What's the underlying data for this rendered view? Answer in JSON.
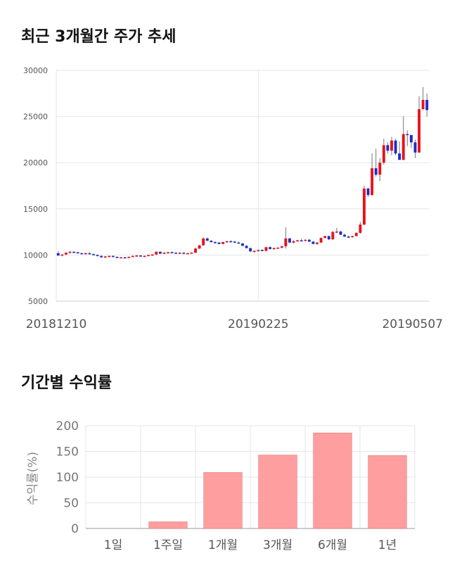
{
  "titles": {
    "price_chart": "최근 3개월간 주가 추세",
    "returns_chart": "기간별 수익률"
  },
  "colors": {
    "up": "#e8121d",
    "down": "#1d2dc8",
    "bar_fill": "#ff9e9e",
    "bar_stroke": "#e07a7a",
    "grid": "#e6e6e6"
  },
  "chart_data": [
    {
      "type": "candlestick",
      "title": "최근 3개월간 주가 추세",
      "y_ticks": [
        30000,
        25000,
        20000,
        15000,
        10000,
        5000
      ],
      "ylim": [
        5000,
        30000
      ],
      "x_labels": [
        {
          "label": "20181210",
          "index": 0
        },
        {
          "label": "20190225",
          "index": 51
        },
        {
          "label": "20190507",
          "index": 102
        }
      ],
      "candles": [
        [
          10200,
          10400,
          9900,
          9950
        ],
        [
          9950,
          10100,
          9850,
          10050
        ],
        [
          10050,
          10300,
          10000,
          10250
        ],
        [
          10250,
          10450,
          10150,
          10350
        ],
        [
          10350,
          10400,
          10200,
          10300
        ],
        [
          10300,
          10350,
          10150,
          10200
        ],
        [
          10200,
          10250,
          10100,
          10150
        ],
        [
          10150,
          10250,
          10050,
          10200
        ],
        [
          10200,
          10300,
          10050,
          10100
        ],
        [
          10100,
          10150,
          9950,
          10000
        ],
        [
          10000,
          10050,
          9850,
          9900
        ],
        [
          9900,
          9950,
          9700,
          9750
        ],
        [
          9750,
          9900,
          9650,
          9850
        ],
        [
          9850,
          9950,
          9750,
          9900
        ],
        [
          9900,
          9950,
          9750,
          9800
        ],
        [
          9800,
          9850,
          9650,
          9700
        ],
        [
          9700,
          9800,
          9650,
          9750
        ],
        [
          9750,
          9800,
          9650,
          9700
        ],
        [
          9700,
          9850,
          9650,
          9800
        ],
        [
          9800,
          9950,
          9750,
          9900
        ],
        [
          9900,
          10000,
          9800,
          9950
        ],
        [
          9950,
          10000,
          9800,
          9850
        ],
        [
          9850,
          9950,
          9800,
          9900
        ],
        [
          9900,
          10050,
          9850,
          10000
        ],
        [
          10000,
          10100,
          9900,
          10050
        ],
        [
          10050,
          10400,
          10000,
          10350
        ],
        [
          10350,
          10400,
          10100,
          10150
        ],
        [
          10150,
          10300,
          10100,
          10250
        ],
        [
          10250,
          10350,
          10150,
          10300
        ],
        [
          10300,
          10400,
          10200,
          10250
        ],
        [
          10250,
          10300,
          10150,
          10200
        ],
        [
          10200,
          10300,
          10100,
          10250
        ],
        [
          10250,
          10300,
          10100,
          10150
        ],
        [
          10150,
          10250,
          10100,
          10200
        ],
        [
          10200,
          10300,
          10150,
          10250
        ],
        [
          10250,
          10800,
          10200,
          10700
        ],
        [
          10700,
          11100,
          10650,
          11050
        ],
        [
          11050,
          11900,
          11000,
          11800
        ],
        [
          11800,
          11900,
          11500,
          11550
        ],
        [
          11550,
          11600,
          11350,
          11400
        ],
        [
          11400,
          11500,
          11250,
          11350
        ],
        [
          11350,
          11400,
          11150,
          11200
        ],
        [
          11200,
          11450,
          11150,
          11400
        ],
        [
          11400,
          11550,
          11300,
          11500
        ],
        [
          11500,
          11600,
          11350,
          11450
        ],
        [
          11450,
          11550,
          11300,
          11350
        ],
        [
          11350,
          11450,
          11200,
          11250
        ],
        [
          11250,
          11300,
          10950,
          11000
        ],
        [
          11000,
          11050,
          10700,
          10750
        ],
        [
          10750,
          10800,
          10300,
          10400
        ],
        [
          10400,
          10500,
          10250,
          10450
        ],
        [
          10450,
          10600,
          10350,
          10550
        ],
        [
          10550,
          10650,
          10400,
          10450
        ],
        [
          10450,
          10900,
          10400,
          10850
        ],
        [
          10850,
          10950,
          10600,
          10650
        ],
        [
          10650,
          10800,
          10550,
          10750
        ],
        [
          10750,
          10850,
          10650,
          10800
        ],
        [
          10800,
          11000,
          10700,
          10950
        ],
        [
          10950,
          13000,
          10700,
          11800
        ],
        [
          11800,
          11850,
          11300,
          11350
        ],
        [
          11350,
          11600,
          11250,
          11500
        ],
        [
          11500,
          11650,
          11400,
          11600
        ],
        [
          11600,
          11750,
          11450,
          11550
        ],
        [
          11550,
          11700,
          11450,
          11650
        ],
        [
          11650,
          11750,
          11400,
          11450
        ],
        [
          11450,
          11500,
          11150,
          11200
        ],
        [
          11200,
          11400,
          11100,
          11350
        ],
        [
          11350,
          11900,
          11300,
          11850
        ],
        [
          11850,
          12100,
          11800,
          12050
        ],
        [
          12050,
          12100,
          11600,
          11700
        ],
        [
          11700,
          12600,
          11650,
          12500
        ],
        [
          12500,
          12950,
          12350,
          12550
        ],
        [
          12550,
          12600,
          12150,
          12200
        ],
        [
          12200,
          12300,
          11950,
          12000
        ],
        [
          12000,
          12100,
          11850,
          11950
        ],
        [
          11950,
          12100,
          11850,
          12050
        ],
        [
          12050,
          12450,
          12000,
          12400
        ],
        [
          12400,
          13600,
          12300,
          13300
        ],
        [
          13300,
          17500,
          13200,
          17200
        ],
        [
          17200,
          17300,
          16300,
          16500
        ],
        [
          16500,
          21000,
          16400,
          19400
        ],
        [
          19400,
          21500,
          18500,
          18700
        ],
        [
          18700,
          20500,
          18000,
          20000
        ],
        [
          20000,
          22600,
          19800,
          21900
        ],
        [
          21900,
          22200,
          21000,
          21300
        ],
        [
          21300,
          22800,
          20800,
          22400
        ],
        [
          22400,
          22600,
          20800,
          21000
        ],
        [
          21000,
          22300,
          20400,
          20300
        ],
        [
          20300,
          25000,
          20300,
          23100
        ],
        [
          23100,
          23500,
          21800,
          23000
        ],
        [
          23000,
          22800,
          21600,
          22200
        ],
        [
          22200,
          22500,
          20500,
          21100
        ],
        [
          21100,
          27200,
          21100,
          25800
        ],
        [
          25800,
          28200,
          25700,
          26800
        ],
        [
          26800,
          27500,
          25000,
          25700
        ]
      ]
    },
    {
      "type": "bar",
      "title": "기간별 수익률",
      "ylabel": "수익률(%)",
      "categories": [
        "1일",
        "1주일",
        "1개월",
        "3개월",
        "6개월",
        "1년"
      ],
      "values": [
        0,
        13,
        109,
        143,
        186,
        142
      ],
      "ylim": [
        0,
        200
      ],
      "y_ticks": [
        200,
        150,
        100,
        50,
        0
      ]
    }
  ]
}
